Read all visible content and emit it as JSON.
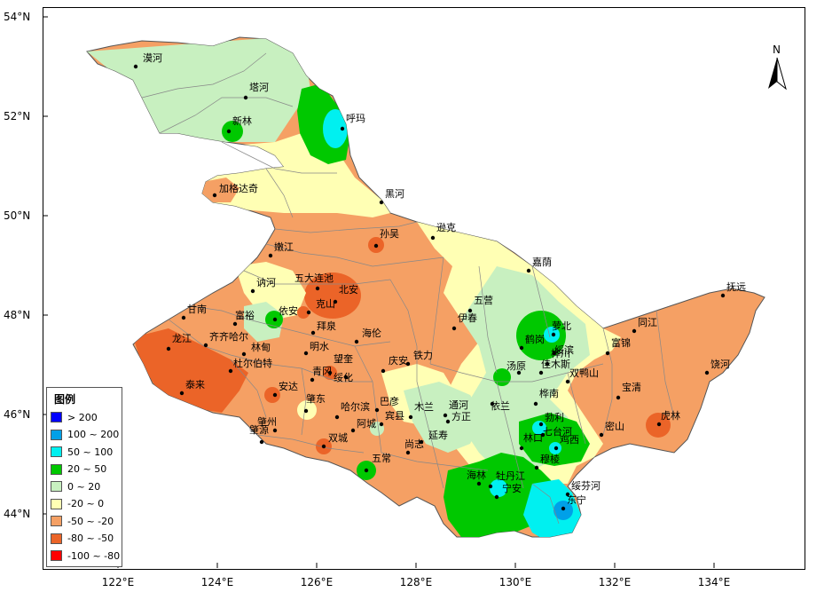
{
  "map": {
    "north_label": "N",
    "lat_ticks": [
      "54°N",
      "52°N",
      "50°N",
      "48°N",
      "46°N",
      "44°N"
    ],
    "lon_ticks": [
      "122°E",
      "124°E",
      "126°E",
      "128°E",
      "130°E",
      "132°E",
      "134°E"
    ]
  },
  "legend": {
    "title": "图例",
    "items": [
      {
        "label": "> 200",
        "color": "#0000ff"
      },
      {
        "label": "100 ~ 200",
        "color": "#00a0e8"
      },
      {
        "label": "50 ~ 100",
        "color": "#00f0f0"
      },
      {
        "label": "20 ~ 50",
        "color": "#00c800"
      },
      {
        "label": "0 ~ 20",
        "color": "#c8f0c0"
      },
      {
        "label": "-20 ~ 0",
        "color": "#ffffb4"
      },
      {
        "label": "-50 ~ -20",
        "color": "#f5a064"
      },
      {
        "label": "-80 ~ -50",
        "color": "#eb6428"
      },
      {
        "label": "-100 ~ -80",
        "color": "#ff0000"
      }
    ]
  },
  "cities": [
    {
      "name": "漠河"
    },
    {
      "name": "塔河"
    },
    {
      "name": "新林"
    },
    {
      "name": "呼玛"
    },
    {
      "name": "加格达奇"
    },
    {
      "name": "黑河"
    },
    {
      "name": "孙吴"
    },
    {
      "name": "逊克"
    },
    {
      "name": "嫩江"
    },
    {
      "name": "嘉荫"
    },
    {
      "name": "五大连池"
    },
    {
      "name": "北安"
    },
    {
      "name": "讷河"
    },
    {
      "name": "克山"
    },
    {
      "name": "五营"
    },
    {
      "name": "抚远"
    },
    {
      "name": "甘南"
    },
    {
      "name": "富裕"
    },
    {
      "name": "依安"
    },
    {
      "name": "萝北"
    },
    {
      "name": "伊春"
    },
    {
      "name": "拜泉"
    },
    {
      "name": "鹤岗"
    },
    {
      "name": "同江"
    },
    {
      "name": "龙江"
    },
    {
      "name": "齐齐哈尔"
    },
    {
      "name": "林甸"
    },
    {
      "name": "明水"
    },
    {
      "name": "海伦"
    },
    {
      "name": "富锦"
    },
    {
      "name": "绥滨"
    },
    {
      "name": "桦川"
    },
    {
      "name": "杜尔伯特"
    },
    {
      "name": "铁力"
    },
    {
      "name": "庆安"
    },
    {
      "name": "汤原"
    },
    {
      "name": "佳木斯"
    },
    {
      "name": "双鸭山"
    },
    {
      "name": "饶河"
    },
    {
      "name": "青冈"
    },
    {
      "name": "望奎"
    },
    {
      "name": "绥化"
    },
    {
      "name": "泰来"
    },
    {
      "name": "安达"
    },
    {
      "name": "依兰"
    },
    {
      "name": "桦南"
    },
    {
      "name": "宝清"
    },
    {
      "name": "肇东"
    },
    {
      "name": "巴彦"
    },
    {
      "name": "哈尔滨"
    },
    {
      "name": "木兰"
    },
    {
      "name": "通河"
    },
    {
      "name": "宾县"
    },
    {
      "name": "方正"
    },
    {
      "name": "勃利"
    },
    {
      "name": "虎林"
    },
    {
      "name": "肇州"
    },
    {
      "name": "阿城"
    },
    {
      "name": "延寿"
    },
    {
      "name": "七台河"
    },
    {
      "name": "林口"
    },
    {
      "name": "鸡西"
    },
    {
      "name": "密山"
    },
    {
      "name": "肇源"
    },
    {
      "name": "双城"
    },
    {
      "name": "尚志"
    },
    {
      "name": "五常"
    },
    {
      "name": "穆棱"
    },
    {
      "name": "海林"
    },
    {
      "name": "牡丹江"
    },
    {
      "name": "宁安"
    },
    {
      "name": "绥芬河"
    },
    {
      "name": "东宁"
    }
  ]
}
